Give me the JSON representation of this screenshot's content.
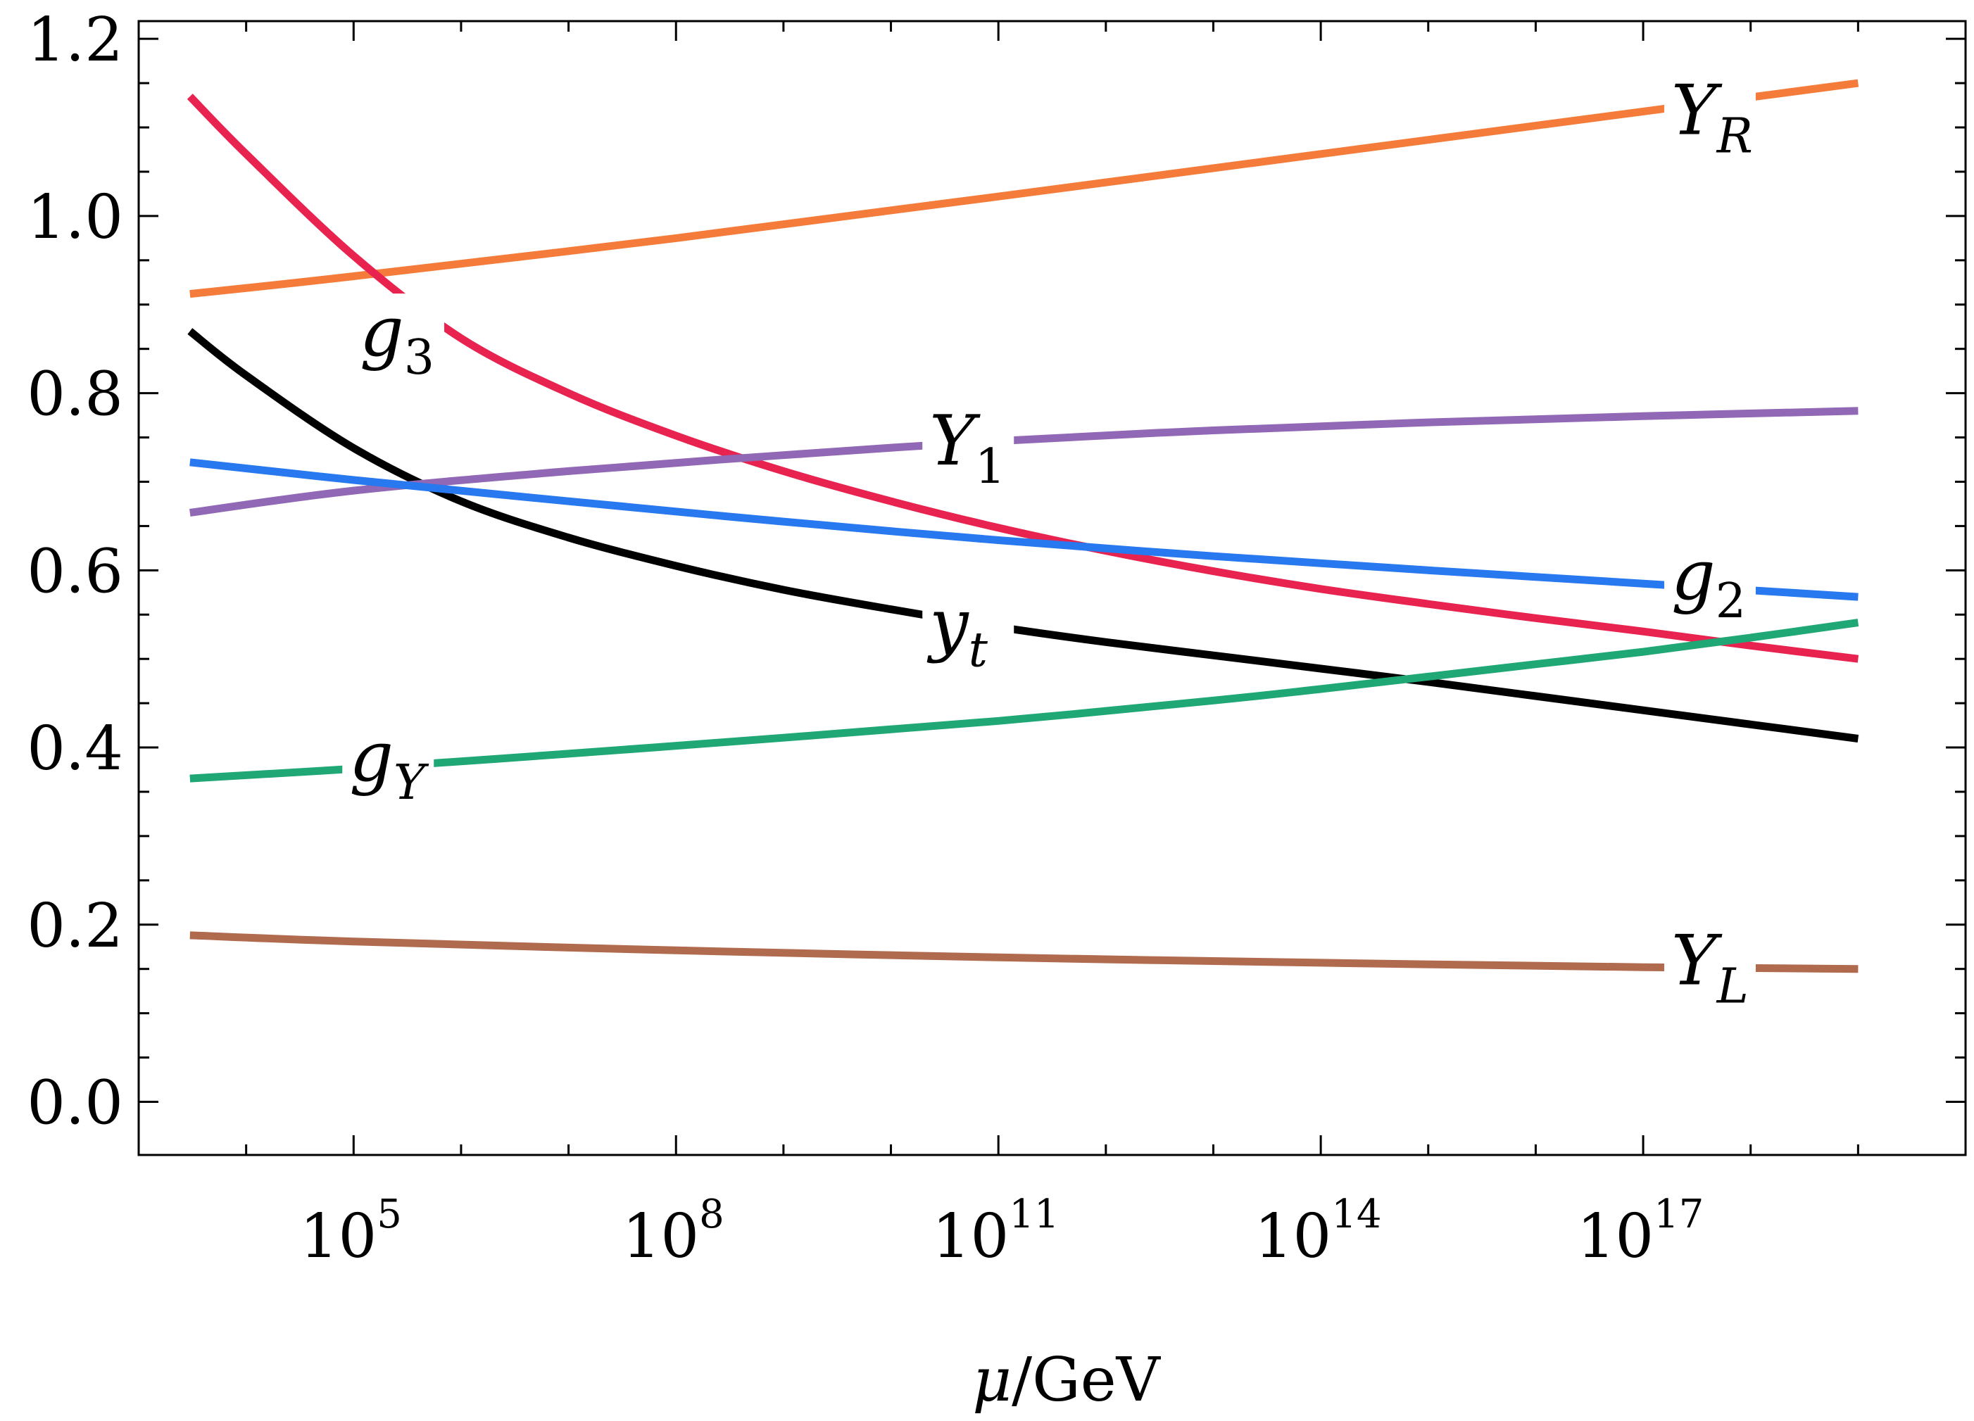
{
  "chart_data": {
    "type": "line",
    "title": "",
    "xlabel": {
      "symbol": "μ",
      "unit": "/GeV"
    },
    "ylabel": "",
    "x_scale": "log10",
    "xlim": [
      1000,
      1e+20
    ],
    "ylim": [
      -0.06,
      1.22
    ],
    "y_ticks": [
      "0.0",
      "0.2",
      "0.4",
      "0.6",
      "0.8",
      "1.0",
      "1.2"
    ],
    "y_tick_values": [
      0.0,
      0.2,
      0.4,
      0.6,
      0.8,
      1.0,
      1.2
    ],
    "x_ticks": [
      {
        "base": "10",
        "exp": "5",
        "value": 100000.0
      },
      {
        "base": "10",
        "exp": "8",
        "value": 100000000.0
      },
      {
        "base": "10",
        "exp": "11",
        "value": 100000000000.0
      },
      {
        "base": "10",
        "exp": "14",
        "value": 100000000000000.0
      },
      {
        "base": "10",
        "exp": "17",
        "value": 1e+17
      }
    ],
    "grid": false,
    "legend": "inline labels",
    "series": [
      {
        "name": "Y_R",
        "label_main": "Y",
        "label_sub": "R",
        "sub_italic": true,
        "color": "#f47b3a",
        "x": [
          3000.0,
          100000.0,
          100000000.0,
          100000000000.0,
          100000000000000.0,
          1e+17,
          1e+19
        ],
        "y": [
          0.912,
          0.932,
          0.975,
          1.022,
          1.07,
          1.118,
          1.15
        ]
      },
      {
        "name": "g_3",
        "label_main": "g",
        "label_sub": "3",
        "sub_italic": false,
        "color": "#e8234f",
        "x": [
          3000.0,
          10000.0,
          100000.0,
          1000000.0,
          10000000.0,
          100000000.0,
          1000000000.0,
          10000000000.0,
          100000000000.0,
          1000000000000.0,
          10000000000000.0,
          100000000000000.0,
          1000000000000000.0,
          1e+16,
          1e+17,
          1e+18,
          1e+19
        ],
        "y": [
          1.135,
          1.07,
          0.955,
          0.862,
          0.8,
          0.752,
          0.712,
          0.678,
          0.648,
          0.622,
          0.599,
          0.579,
          0.562,
          0.546,
          0.531,
          0.515,
          0.5
        ]
      },
      {
        "name": "y_t",
        "label_main": "y",
        "label_sub": "t",
        "sub_italic": true,
        "color": "#000000",
        "x": [
          3000.0,
          10000.0,
          100000.0,
          1000000.0,
          10000000.0,
          100000000.0,
          1000000000.0,
          10000000000.0,
          100000000000.0,
          1000000000000.0,
          10000000000000.0,
          100000000000000.0,
          1000000000000000.0,
          1e+16,
          1e+17,
          1e+18,
          1e+19
        ],
        "y": [
          0.87,
          0.82,
          0.738,
          0.678,
          0.637,
          0.605,
          0.578,
          0.556,
          0.536,
          0.519,
          0.504,
          0.489,
          0.474,
          0.458,
          0.442,
          0.426,
          0.41
        ]
      },
      {
        "name": "Y_1",
        "label_main": "Y",
        "label_sub": "1",
        "sub_italic": false,
        "color": "#9068b5",
        "x": [
          3000.0,
          100000.0,
          10000000.0,
          1000000000.0,
          100000000000.0,
          10000000000000.0,
          1000000000000000.0,
          1e+17,
          1e+19
        ],
        "y": [
          0.665,
          0.69,
          0.712,
          0.73,
          0.746,
          0.758,
          0.767,
          0.774,
          0.78
        ]
      },
      {
        "name": "g_2",
        "label_main": "g",
        "label_sub": "2",
        "sub_italic": false,
        "color": "#2878f0",
        "x": [
          3000.0,
          100000.0,
          10000000.0,
          1000000000.0,
          100000000000.0,
          10000000000000.0,
          1000000000000000.0,
          1e+17,
          1e+19
        ],
        "y": [
          0.722,
          0.702,
          0.678,
          0.655,
          0.634,
          0.616,
          0.6,
          0.585,
          0.57
        ]
      },
      {
        "name": "g_Y",
        "label_main": "g",
        "label_sub": "Y",
        "sub_italic": true,
        "color": "#1fa775",
        "x": [
          3000.0,
          100000.0,
          10000000.0,
          1000000000.0,
          100000000000.0,
          10000000000000.0,
          100000000000000.0,
          1000000000000000.0,
          1e+16,
          1e+17,
          1e+18,
          1e+19
        ],
        "y": [
          0.365,
          0.376,
          0.393,
          0.411,
          0.43,
          0.453,
          0.466,
          0.48,
          0.494,
          0.508,
          0.524,
          0.541
        ]
      },
      {
        "name": "Y_L",
        "label_main": "Y",
        "label_sub": "L",
        "sub_italic": true,
        "color": "#b06a4e",
        "x": [
          3000.0,
          100000.0,
          100000000.0,
          100000000000.0,
          100000000000000.0,
          1e+17,
          1e+19
        ],
        "y": [
          0.188,
          0.181,
          0.171,
          0.163,
          0.157,
          0.152,
          0.15
        ]
      }
    ],
    "labels": [
      {
        "series": "Y_R",
        "x": 4e+17,
        "y": 1.11
      },
      {
        "series": "g_3",
        "x": 250000.0,
        "y": 0.86
      },
      {
        "series": "Y_1",
        "x": 50000000000.0,
        "y": 0.737
      },
      {
        "series": "g_2",
        "x": 4e+17,
        "y": 0.585
      },
      {
        "series": "y_t",
        "x": 50000000000.0,
        "y": 0.53
      },
      {
        "series": "g_Y",
        "x": 200000.0,
        "y": 0.38
      },
      {
        "series": "Y_L",
        "x": 4e+17,
        "y": 0.15
      }
    ]
  }
}
